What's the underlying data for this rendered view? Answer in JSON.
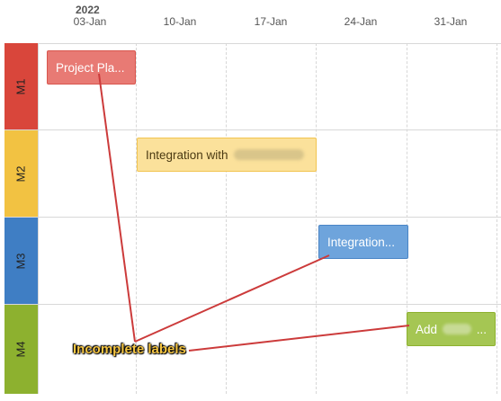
{
  "header": {
    "year": "2022",
    "dates": [
      "03-Jan",
      "10-Jan",
      "17-Jan",
      "24-Jan",
      "31-Jan"
    ]
  },
  "rows": [
    {
      "label": "M1",
      "color": "#d9463b"
    },
    {
      "label": "M2",
      "color": "#f2c242"
    },
    {
      "label": "M3",
      "color": "#3f7ec4"
    },
    {
      "label": "M4",
      "color": "#8db12f"
    }
  ],
  "tasks": [
    {
      "text": "Project Pla...",
      "bg": "#e87a74",
      "border": "#d9564e",
      "color": "#ffffff"
    },
    {
      "text": "Integration with",
      "bg": "#fbe19b",
      "border": "#f2c44f",
      "color": "#4b3a12"
    },
    {
      "text": "Integration...",
      "bg": "#6ea4dc",
      "border": "#4a85c6",
      "color": "#ffffff"
    },
    {
      "text": "Add",
      "suffix": "...",
      "bg": "#a5c653",
      "border": "#8db12f",
      "color": "#ffffff"
    }
  ],
  "annotation": {
    "text": "Incomplete labels",
    "line_color": "#cc3b3b",
    "text_color": "#f5c542"
  }
}
